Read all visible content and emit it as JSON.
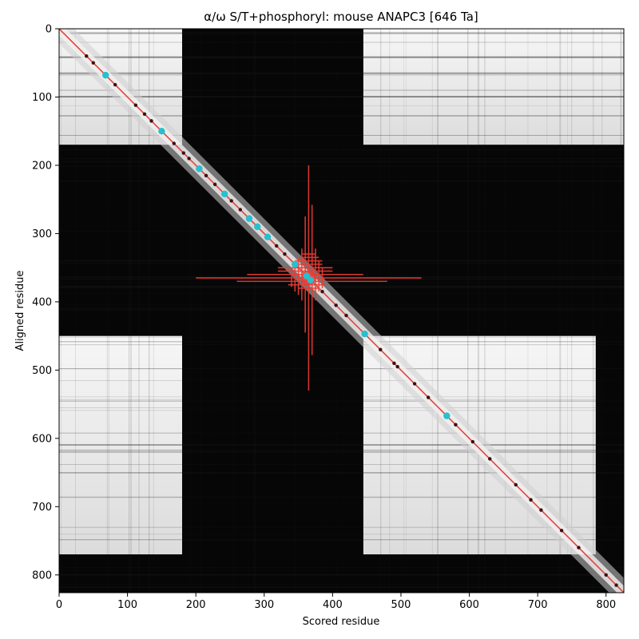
{
  "chart_data": {
    "type": "heatmap",
    "title": "α/ω S/T+phosphoryl: mouse ANAPC3 [646 Ta]",
    "xlabel": "Scored residue",
    "ylabel": "Aligned residue",
    "xlim": [
      0,
      826
    ],
    "ylim": [
      826,
      0
    ],
    "x_ticks": [
      0,
      100,
      200,
      300,
      400,
      500,
      600,
      700,
      800
    ],
    "y_ticks": [
      0,
      100,
      200,
      300,
      400,
      500,
      600,
      700,
      800
    ],
    "colormap": "grayscale",
    "blocks": [
      {
        "x": [
          0,
          180
        ],
        "y": [
          0,
          170
        ],
        "level": "high"
      },
      {
        "x": [
          180,
          445
        ],
        "y": [
          0,
          170
        ],
        "level": "low"
      },
      {
        "x": [
          445,
          826
        ],
        "y": [
          0,
          170
        ],
        "level": "high"
      },
      {
        "x": [
          0,
          826
        ],
        "y": [
          170,
          450
        ],
        "level": "low"
      },
      {
        "x": [
          0,
          180
        ],
        "y": [
          450,
          770
        ],
        "level": "high"
      },
      {
        "x": [
          180,
          445
        ],
        "y": [
          450,
          770
        ],
        "level": "low"
      },
      {
        "x": [
          445,
          785
        ],
        "y": [
          450,
          770
        ],
        "level": "high"
      },
      {
        "x": [
          785,
          826
        ],
        "y": [
          450,
          826
        ],
        "level": "low"
      },
      {
        "x": [
          0,
          826
        ],
        "y": [
          770,
          826
        ],
        "level": "low"
      }
    ],
    "diagonal_line": {
      "from": [
        0,
        0
      ],
      "to": [
        826,
        826
      ],
      "color": "#e8413a"
    },
    "cyan_points": [
      {
        "x": 68,
        "y": 68
      },
      {
        "x": 150,
        "y": 150
      },
      {
        "x": 205,
        "y": 205
      },
      {
        "x": 242,
        "y": 242
      },
      {
        "x": 278,
        "y": 278
      },
      {
        "x": 290,
        "y": 290
      },
      {
        "x": 305,
        "y": 305
      },
      {
        "x": 345,
        "y": 345
      },
      {
        "x": 362,
        "y": 362
      },
      {
        "x": 368,
        "y": 368
      },
      {
        "x": 447,
        "y": 447
      },
      {
        "x": 567,
        "y": 567
      }
    ],
    "dark_points": [
      40,
      50,
      82,
      112,
      125,
      135,
      168,
      182,
      190,
      215,
      228,
      252,
      265,
      318,
      330,
      385,
      405,
      420,
      470,
      490,
      495,
      520,
      540,
      580,
      605,
      630,
      668,
      690,
      705,
      735,
      760,
      800,
      815
    ],
    "cross_center": {
      "x": 365,
      "y": 365
    },
    "cross_horizontal": [
      {
        "x": [
          200,
          530
        ],
        "y": 365
      },
      {
        "x": [
          260,
          480
        ],
        "y": 370
      },
      {
        "x": [
          275,
          445
        ],
        "y": 360
      },
      {
        "x": [
          320,
          400
        ],
        "y": 355
      },
      {
        "x": [
          320,
          400
        ],
        "y": 350
      },
      {
        "x": [
          335,
          390
        ],
        "y": 375
      },
      {
        "x": [
          340,
          385
        ],
        "y": 345
      },
      {
        "x": [
          345,
          385
        ],
        "y": 340
      },
      {
        "x": [
          350,
          380
        ],
        "y": 335
      },
      {
        "x": [
          350,
          380
        ],
        "y": 380
      },
      {
        "x": [
          355,
          375
        ],
        "y": 330
      }
    ],
    "cross_vertical": [
      {
        "x": 365,
        "y": [
          200,
          530
        ]
      },
      {
        "x": 370,
        "y": [
          258,
          478
        ]
      },
      {
        "x": 360,
        "y": [
          275,
          445
        ]
      },
      {
        "x": 355,
        "y": [
          322,
          398
        ]
      },
      {
        "x": 375,
        "y": [
          322,
          398
        ]
      },
      {
        "x": 350,
        "y": [
          335,
          390
        ]
      },
      {
        "x": 380,
        "y": [
          340,
          385
        ]
      },
      {
        "x": 345,
        "y": [
          345,
          385
        ]
      },
      {
        "x": 385,
        "y": [
          350,
          380
        ]
      },
      {
        "x": 340,
        "y": [
          352,
          378
        ]
      }
    ]
  }
}
